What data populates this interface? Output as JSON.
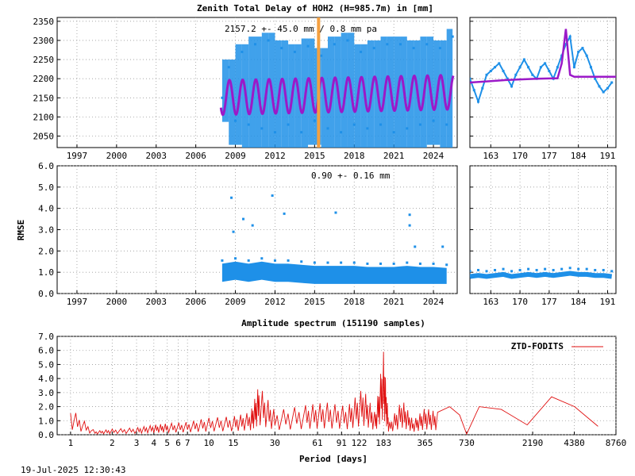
{
  "colors": {
    "series": "#1e90e8",
    "model": "#9b19c8",
    "event": "#f4a040",
    "spectrum": "#e01010",
    "grid": "#9a9a9a"
  },
  "texts": {
    "title": "Zenith Total Delay of HOH2 (H=985.7m) in [mm]",
    "ztd_annotation": "2157.2 +-  45.0 mm /  0.8 mm pa",
    "rmse_annotation": "0.90 +-  0.16 mm",
    "rmse_ylabel": "RMSE",
    "spectrum_title": "Amplitude spectrum (151190 samples)",
    "spectrum_xlabel": "Period [days]",
    "legend": "ZTD-FODITS",
    "timestamp": "19-Jul-2025 12:30:43"
  },
  "chart_data": [
    {
      "type": "scatter",
      "panel": "ztd-main",
      "ylim": [
        2020,
        2360
      ],
      "xlim": [
        1995.5,
        2025.8
      ],
      "yticks": [
        2050,
        2100,
        2150,
        2200,
        2250,
        2300,
        2350
      ],
      "xticks": [
        1997,
        2000,
        2003,
        2006,
        2009,
        2012,
        2015,
        2018,
        2021,
        2024
      ],
      "data_start": 2007.9,
      "data_end": 2025.5,
      "event_year": 2015.3,
      "mean": 2157.2,
      "seasonal_amplitude": 45.0,
      "trend_mm_per_year": 0.8,
      "series": [
        {
          "name": "ZTD",
          "values": [
            [
              2008.0,
              2150
            ],
            [
              2008.5,
              2230
            ],
            [
              2009.0,
              2090
            ],
            [
              2009.5,
              2270
            ],
            [
              2010.0,
              2080
            ],
            [
              2010.5,
              2290
            ],
            [
              2011.0,
              2070
            ],
            [
              2011.5,
              2300
            ],
            [
              2012.0,
              2060
            ],
            [
              2012.5,
              2280
            ],
            [
              2013.0,
              2080
            ],
            [
              2013.5,
              2270
            ],
            [
              2014.0,
              2060
            ],
            [
              2014.5,
              2285
            ],
            [
              2015.0,
              2090
            ],
            [
              2015.5,
              2260
            ],
            [
              2016.0,
              2070
            ],
            [
              2016.5,
              2290
            ],
            [
              2017.0,
              2060
            ],
            [
              2017.5,
              2300
            ],
            [
              2018.0,
              2080
            ],
            [
              2018.5,
              2270
            ],
            [
              2019.0,
              2070
            ],
            [
              2019.5,
              2280
            ],
            [
              2020.0,
              2080
            ],
            [
              2020.5,
              2290
            ],
            [
              2021.0,
              2060
            ],
            [
              2021.5,
              2290
            ],
            [
              2022.0,
              2070
            ],
            [
              2022.5,
              2280
            ],
            [
              2023.0,
              2080
            ],
            [
              2023.5,
              2290
            ],
            [
              2024.0,
              2090
            ],
            [
              2024.5,
              2280
            ],
            [
              2025.0,
              2080
            ],
            [
              2025.45,
              2310
            ]
          ]
        }
      ]
    },
    {
      "type": "line",
      "panel": "ztd-zoom",
      "ylim": [
        2020,
        2360
      ],
      "xlim": [
        158,
        193
      ],
      "xticks": [
        163,
        170,
        177,
        184,
        191
      ],
      "series": [
        {
          "name": "ZTD",
          "values": [
            [
              158,
              2200
            ],
            [
              159,
              2170
            ],
            [
              160,
              2140
            ],
            [
              161,
              2175
            ],
            [
              162,
              2210
            ],
            [
              163,
              2220
            ],
            [
              164,
              2230
            ],
            [
              165,
              2240
            ],
            [
              166,
              2220
            ],
            [
              167,
              2200
            ],
            [
              168,
              2180
            ],
            [
              169,
              2210
            ],
            [
              170,
              2230
            ],
            [
              171,
              2250
            ],
            [
              172,
              2230
            ],
            [
              173,
              2210
            ],
            [
              174,
              2200
            ],
            [
              175,
              2230
            ],
            [
              176,
              2240
            ],
            [
              177,
              2220
            ],
            [
              178,
              2200
            ],
            [
              179,
              2230
            ],
            [
              180,
              2260
            ],
            [
              181,
              2290
            ],
            [
              182,
              2310
            ],
            [
              183,
              2230
            ],
            [
              184,
              2270
            ],
            [
              185,
              2280
            ],
            [
              186,
              2260
            ],
            [
              187,
              2230
            ],
            [
              188,
              2200
            ],
            [
              189,
              2180
            ],
            [
              190,
              2165
            ],
            [
              191,
              2175
            ],
            [
              192,
              2190
            ]
          ]
        },
        {
          "name": "model",
          "values": [
            [
              158,
              2190
            ],
            [
              162,
              2193
            ],
            [
              166,
              2196
            ],
            [
              170,
              2198
            ],
            [
              174,
              2200
            ],
            [
              178,
              2201
            ],
            [
              179,
              2201
            ],
            [
              180,
              2240
            ],
            [
              181,
              2330
            ],
            [
              182,
              2210
            ],
            [
              183,
              2205
            ],
            [
              184,
              2205
            ],
            [
              187,
              2205
            ],
            [
              193,
              2205
            ]
          ]
        }
      ]
    },
    {
      "type": "scatter",
      "panel": "rmse-main",
      "ylim": [
        0,
        6
      ],
      "xlim": [
        1995.5,
        2025.8
      ],
      "yticks": [
        0.0,
        1.0,
        2.0,
        3.0,
        4.0,
        5.0,
        6.0
      ],
      "xticks": [
        1997,
        2000,
        2003,
        2006,
        2009,
        2012,
        2015,
        2018,
        2021,
        2024
      ],
      "series": [
        {
          "name": "RMSE",
          "values": [
            [
              2008.0,
              1.0
            ],
            [
              2009.0,
              1.1
            ],
            [
              2010.0,
              1.0
            ],
            [
              2011.0,
              1.1
            ],
            [
              2012.0,
              1.0
            ],
            [
              2013.0,
              1.0
            ],
            [
              2014.0,
              0.95
            ],
            [
              2015.0,
              0.9
            ],
            [
              2016.0,
              0.9
            ],
            [
              2017.0,
              0.9
            ],
            [
              2018.0,
              0.9
            ],
            [
              2019.0,
              0.85
            ],
            [
              2020.0,
              0.85
            ],
            [
              2021.0,
              0.85
            ],
            [
              2022.0,
              0.9
            ],
            [
              2023.0,
              0.85
            ],
            [
              2024.0,
              0.85
            ],
            [
              2025.0,
              0.8
            ]
          ]
        },
        {
          "name": "outliers",
          "values": [
            [
              2008.7,
              4.5
            ],
            [
              2008.85,
              2.9
            ],
            [
              2009.6,
              3.5
            ],
            [
              2010.3,
              3.2
            ],
            [
              2011.8,
              4.6
            ],
            [
              2012.7,
              3.75
            ],
            [
              2016.6,
              3.8
            ],
            [
              2022.2,
              3.7
            ],
            [
              2022.2,
              3.2
            ],
            [
              2024.7,
              2.2
            ],
            [
              2022.6,
              2.2
            ]
          ]
        }
      ]
    },
    {
      "type": "scatter",
      "panel": "rmse-zoom",
      "ylim": [
        0,
        6
      ],
      "xlim": [
        158,
        193
      ],
      "xticks": [
        163,
        170,
        177,
        184,
        191
      ],
      "series": [
        {
          "name": "RMSE",
          "values": [
            [
              158,
              0.8
            ],
            [
              160,
              0.85
            ],
            [
              162,
              0.8
            ],
            [
              164,
              0.85
            ],
            [
              166,
              0.9
            ],
            [
              168,
              0.8
            ],
            [
              170,
              0.85
            ],
            [
              172,
              0.9
            ],
            [
              174,
              0.85
            ],
            [
              176,
              0.9
            ],
            [
              178,
              0.85
            ],
            [
              180,
              0.9
            ],
            [
              182,
              0.95
            ],
            [
              184,
              0.9
            ],
            [
              186,
              0.9
            ],
            [
              188,
              0.85
            ],
            [
              190,
              0.85
            ],
            [
              192,
              0.8
            ]
          ]
        }
      ]
    },
    {
      "type": "line",
      "panel": "spectrum",
      "xscale": "log",
      "ylim": [
        0,
        7
      ],
      "yticks": [
        0.0,
        1.0,
        2.0,
        3.0,
        4.0,
        5.0,
        6.0,
        7.0
      ],
      "xticks": [
        1,
        2,
        3,
        4,
        5,
        6,
        7,
        10,
        15,
        30,
        61,
        91,
        122,
        183,
        365,
        730,
        2190,
        4380,
        8760
      ],
      "xlim": [
        0.8,
        8760
      ],
      "legend_position": "top-right",
      "series": [
        {
          "name": "ZTD-FODITS",
          "values": [
            [
              1,
              1.9
            ],
            [
              1.5,
              0.25
            ],
            [
              2,
              0.4
            ],
            [
              3,
              0.5
            ],
            [
              4,
              0.7
            ],
            [
              5,
              0.8
            ],
            [
              7,
              0.9
            ],
            [
              10,
              1.2
            ],
            [
              15,
              1.3
            ],
            [
              20,
              1.6
            ],
            [
              23,
              3.5
            ],
            [
              30,
              1.7
            ],
            [
              50,
              2.1
            ],
            [
              70,
              2.3
            ],
            [
              100,
              2.0
            ],
            [
              130,
              3.3
            ],
            [
              160,
              1.5
            ],
            [
              183,
              5.9
            ],
            [
              200,
              0.8
            ],
            [
              250,
              2.5
            ],
            [
              300,
              1.0
            ],
            [
              365,
              1.9
            ],
            [
              450,
              1.6
            ],
            [
              550,
              2.0
            ],
            [
              650,
              1.4
            ],
            [
              730,
              0.05
            ],
            [
              900,
              2.0
            ],
            [
              1300,
              1.8
            ],
            [
              2000,
              0.7
            ],
            [
              3000,
              2.7
            ],
            [
              4400,
              2.0
            ],
            [
              6500,
              0.6
            ]
          ]
        }
      ]
    }
  ]
}
